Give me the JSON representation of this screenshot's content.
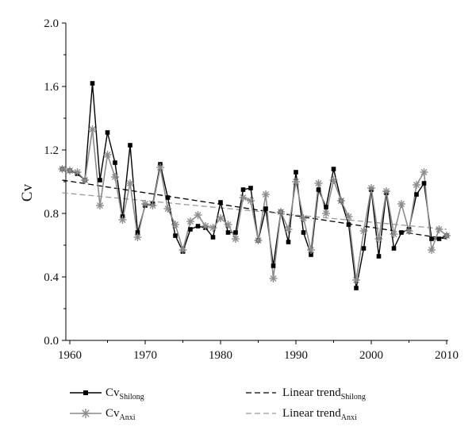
{
  "chart_data": {
    "type": "line",
    "ylabel": "Cv",
    "xlim": [
      1960,
      2010
    ],
    "ylim": [
      0,
      2
    ],
    "xticks": [
      1960,
      1970,
      1980,
      1990,
      2000,
      2010
    ],
    "yticks": [
      "0.0",
      "0.4",
      "0.8",
      "1.2",
      "1.6",
      "2.0"
    ],
    "grid": false,
    "legend_placement": "bottom",
    "x": [
      1959,
      1960,
      1961,
      1962,
      1963,
      1964,
      1965,
      1966,
      1967,
      1968,
      1969,
      1970,
      1971,
      1972,
      1973,
      1974,
      1975,
      1976,
      1977,
      1978,
      1979,
      1980,
      1981,
      1982,
      1983,
      1984,
      1985,
      1986,
      1987,
      1988,
      1989,
      1990,
      1991,
      1992,
      1993,
      1994,
      1995,
      1996,
      1997,
      1998,
      1999,
      2000,
      2001,
      2002,
      2003,
      2004,
      2005,
      2006,
      2007,
      2008,
      2009,
      2010
    ],
    "series": [
      {
        "label_main": "Cv",
        "label_sub": "Shilong",
        "color": "#000000",
        "marker": "square",
        "values": [
          1.08,
          1.07,
          1.05,
          1.01,
          1.62,
          1.01,
          1.31,
          1.12,
          0.78,
          1.23,
          0.68,
          0.85,
          0.86,
          1.11,
          0.9,
          0.66,
          0.56,
          0.7,
          0.72,
          0.71,
          0.65,
          0.87,
          0.68,
          0.68,
          0.95,
          0.96,
          0.63,
          0.83,
          0.47,
          0.81,
          0.62,
          1.06,
          0.68,
          0.54,
          0.95,
          0.84,
          1.08,
          0.88,
          0.73,
          0.33,
          0.58,
          0.95,
          0.53,
          0.93,
          0.58,
          0.68,
          0.7,
          0.92,
          0.99,
          0.64,
          0.64,
          0.66
        ]
      },
      {
        "label_main": "Cv",
        "label_sub": "Anxi",
        "color": "#8c8c8c",
        "marker": "asterisk",
        "values": [
          1.08,
          1.07,
          1.06,
          1.01,
          1.33,
          0.85,
          1.17,
          1.03,
          0.76,
          0.99,
          0.65,
          0.86,
          0.85,
          1.09,
          0.83,
          0.73,
          0.57,
          0.75,
          0.79,
          0.72,
          0.71,
          0.77,
          0.73,
          0.64,
          0.9,
          0.88,
          0.63,
          0.92,
          0.39,
          0.81,
          0.7,
          1.0,
          0.77,
          0.57,
          0.99,
          0.8,
          1.01,
          0.88,
          0.78,
          0.38,
          0.69,
          0.96,
          0.64,
          0.94,
          0.67,
          0.86,
          0.69,
          0.98,
          1.06,
          0.57,
          0.7,
          0.66
        ]
      }
    ],
    "trends": [
      {
        "label_main": "Linear trend",
        "label_sub": "Shilong",
        "color": "#000000",
        "dash": "dashed",
        "x": [
          1959,
          2010
        ],
        "y": [
          1.01,
          0.64
        ]
      },
      {
        "label_main": "Linear trend",
        "label_sub": "Anxi",
        "color": "#9a9a9a",
        "dash": "dashed",
        "x": [
          1959,
          2010
        ],
        "y": [
          0.93,
          0.7
        ]
      }
    ]
  }
}
